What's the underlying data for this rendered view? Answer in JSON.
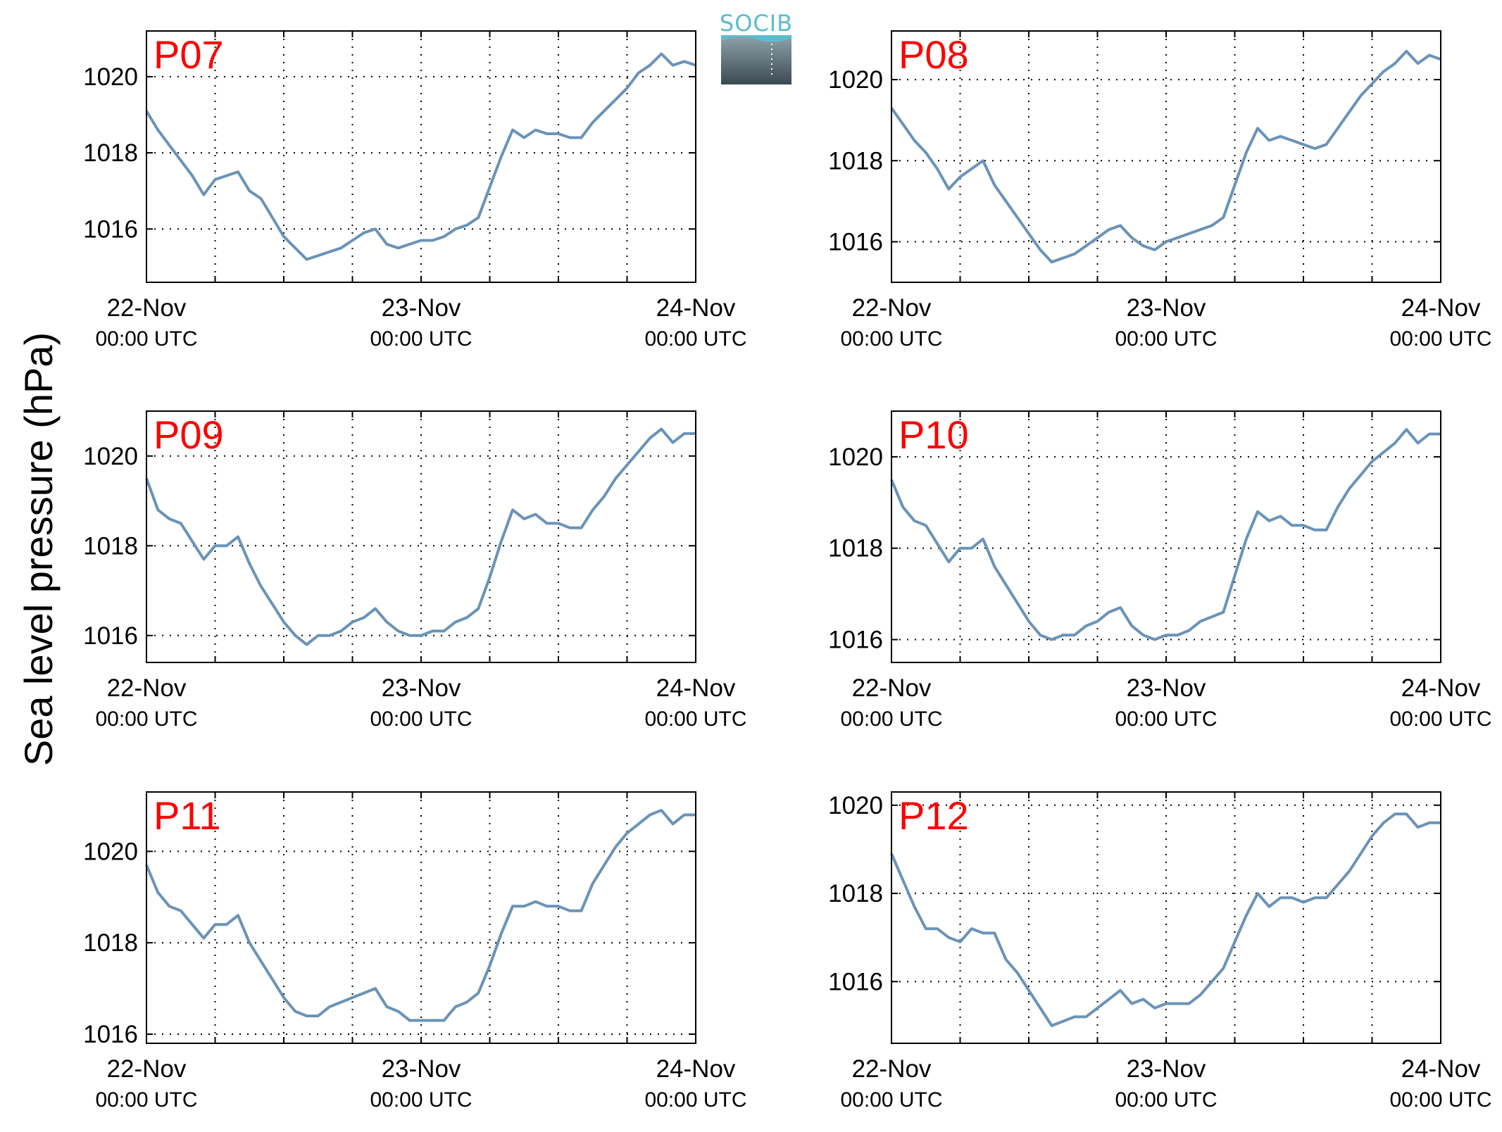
{
  "ylabel": "Sea level pressure (hPa)",
  "logo": {
    "text": "SOCIB",
    "text_color": "#5bbcd0",
    "top_color": "#8fa3ab",
    "bottom_color": "#3b4a52"
  },
  "line_color": "#6a93b7",
  "label_color": "#ff0000",
  "x_ticks": [
    {
      "main": "22-Nov",
      "sub": "00:00 UTC",
      "hours": 0
    },
    {
      "main": "23-Nov",
      "sub": "00:00 UTC",
      "hours": 24
    },
    {
      "main": "24-Nov",
      "sub": "00:00 UTC",
      "hours": 48
    }
  ],
  "chart_data": [
    {
      "type": "line",
      "label": "P07",
      "grid": true,
      "xlim_hours": [
        0,
        48
      ],
      "ylim": [
        1014.6,
        1021.2
      ],
      "yticks": [
        1016,
        1018,
        1020
      ],
      "x_hours": [
        0,
        1,
        2,
        3,
        4,
        5,
        6,
        7,
        8,
        9,
        10,
        11,
        12,
        13,
        14,
        15,
        16,
        17,
        18,
        19,
        20,
        21,
        22,
        23,
        24,
        25,
        26,
        27,
        28,
        29,
        30,
        31,
        32,
        33,
        34,
        35,
        36,
        37,
        38,
        39,
        40,
        41,
        42,
        43,
        44,
        45,
        46,
        47,
        48
      ],
      "y": [
        1019.1,
        1018.6,
        1018.2,
        1017.8,
        1017.4,
        1016.9,
        1017.3,
        1017.4,
        1017.5,
        1017.0,
        1016.8,
        1016.3,
        1015.8,
        1015.5,
        1015.2,
        1015.3,
        1015.4,
        1015.5,
        1015.7,
        1015.9,
        1016.0,
        1015.6,
        1015.5,
        1015.6,
        1015.7,
        1015.7,
        1015.8,
        1016.0,
        1016.1,
        1016.3,
        1017.1,
        1017.9,
        1018.6,
        1018.4,
        1018.6,
        1018.5,
        1018.5,
        1018.4,
        1018.4,
        1018.8,
        1019.1,
        1019.4,
        1019.7,
        1020.1,
        1020.3,
        1020.6,
        1020.3,
        1020.4,
        1020.3
      ]
    },
    {
      "type": "line",
      "label": "P08",
      "grid": true,
      "xlim_hours": [
        0,
        48
      ],
      "ylim": [
        1015.0,
        1021.2
      ],
      "yticks": [
        1016,
        1018,
        1020
      ],
      "x_hours": [
        0,
        1,
        2,
        3,
        4,
        5,
        6,
        7,
        8,
        9,
        10,
        11,
        12,
        13,
        14,
        15,
        16,
        17,
        18,
        19,
        20,
        21,
        22,
        23,
        24,
        25,
        26,
        27,
        28,
        29,
        30,
        31,
        32,
        33,
        34,
        35,
        36,
        37,
        38,
        39,
        40,
        41,
        42,
        43,
        44,
        45,
        46,
        47,
        48
      ],
      "y": [
        1019.3,
        1018.9,
        1018.5,
        1018.2,
        1017.8,
        1017.3,
        1017.6,
        1017.8,
        1018.0,
        1017.4,
        1017.0,
        1016.6,
        1016.2,
        1015.8,
        1015.5,
        1015.6,
        1015.7,
        1015.9,
        1016.1,
        1016.3,
        1016.4,
        1016.1,
        1015.9,
        1015.8,
        1016.0,
        1016.1,
        1016.2,
        1016.3,
        1016.4,
        1016.6,
        1017.4,
        1018.2,
        1018.8,
        1018.5,
        1018.6,
        1018.5,
        1018.4,
        1018.3,
        1018.4,
        1018.8,
        1019.2,
        1019.6,
        1019.9,
        1020.2,
        1020.4,
        1020.7,
        1020.4,
        1020.6,
        1020.5
      ]
    },
    {
      "type": "line",
      "label": "P09",
      "grid": true,
      "xlim_hours": [
        0,
        48
      ],
      "ylim": [
        1015.4,
        1021.0
      ],
      "yticks": [
        1016,
        1018,
        1020
      ],
      "x_hours": [
        0,
        1,
        2,
        3,
        4,
        5,
        6,
        7,
        8,
        9,
        10,
        11,
        12,
        13,
        14,
        15,
        16,
        17,
        18,
        19,
        20,
        21,
        22,
        23,
        24,
        25,
        26,
        27,
        28,
        29,
        30,
        31,
        32,
        33,
        34,
        35,
        36,
        37,
        38,
        39,
        40,
        41,
        42,
        43,
        44,
        45,
        46,
        47,
        48
      ],
      "y": [
        1019.5,
        1018.8,
        1018.6,
        1018.5,
        1018.1,
        1017.7,
        1018.0,
        1018.0,
        1018.2,
        1017.6,
        1017.1,
        1016.7,
        1016.3,
        1016.0,
        1015.8,
        1016.0,
        1016.0,
        1016.1,
        1016.3,
        1016.4,
        1016.6,
        1016.3,
        1016.1,
        1016.0,
        1016.0,
        1016.1,
        1016.1,
        1016.3,
        1016.4,
        1016.6,
        1017.3,
        1018.1,
        1018.8,
        1018.6,
        1018.7,
        1018.5,
        1018.5,
        1018.4,
        1018.4,
        1018.8,
        1019.1,
        1019.5,
        1019.8,
        1020.1,
        1020.4,
        1020.6,
        1020.3,
        1020.5,
        1020.5
      ]
    },
    {
      "type": "line",
      "label": "P10",
      "grid": true,
      "xlim_hours": [
        0,
        48
      ],
      "ylim": [
        1015.5,
        1021.0
      ],
      "yticks": [
        1016,
        1018,
        1020
      ],
      "x_hours": [
        0,
        1,
        2,
        3,
        4,
        5,
        6,
        7,
        8,
        9,
        10,
        11,
        12,
        13,
        14,
        15,
        16,
        17,
        18,
        19,
        20,
        21,
        22,
        23,
        24,
        25,
        26,
        27,
        28,
        29,
        30,
        31,
        32,
        33,
        34,
        35,
        36,
        37,
        38,
        39,
        40,
        41,
        42,
        43,
        44,
        45,
        46,
        47,
        48
      ],
      "y": [
        1019.5,
        1018.9,
        1018.6,
        1018.5,
        1018.1,
        1017.7,
        1018.0,
        1018.0,
        1018.2,
        1017.6,
        1017.2,
        1016.8,
        1016.4,
        1016.1,
        1016.0,
        1016.1,
        1016.1,
        1016.3,
        1016.4,
        1016.6,
        1016.7,
        1016.3,
        1016.1,
        1016.0,
        1016.1,
        1016.1,
        1016.2,
        1016.4,
        1016.5,
        1016.6,
        1017.4,
        1018.2,
        1018.8,
        1018.6,
        1018.7,
        1018.5,
        1018.5,
        1018.4,
        1018.4,
        1018.9,
        1019.3,
        1019.6,
        1019.9,
        1020.1,
        1020.3,
        1020.6,
        1020.3,
        1020.5,
        1020.5
      ]
    },
    {
      "type": "line",
      "label": "P11",
      "grid": true,
      "xlim_hours": [
        0,
        48
      ],
      "ylim": [
        1015.8,
        1021.3
      ],
      "yticks": [
        1016,
        1018,
        1020
      ],
      "x_hours": [
        0,
        1,
        2,
        3,
        4,
        5,
        6,
        7,
        8,
        9,
        10,
        11,
        12,
        13,
        14,
        15,
        16,
        17,
        18,
        19,
        20,
        21,
        22,
        23,
        24,
        25,
        26,
        27,
        28,
        29,
        30,
        31,
        32,
        33,
        34,
        35,
        36,
        37,
        38,
        39,
        40,
        41,
        42,
        43,
        44,
        45,
        46,
        47,
        48
      ],
      "y": [
        1019.7,
        1019.1,
        1018.8,
        1018.7,
        1018.4,
        1018.1,
        1018.4,
        1018.4,
        1018.6,
        1018.0,
        1017.6,
        1017.2,
        1016.8,
        1016.5,
        1016.4,
        1016.4,
        1016.6,
        1016.7,
        1016.8,
        1016.9,
        1017.0,
        1016.6,
        1016.5,
        1016.3,
        1016.3,
        1016.3,
        1016.3,
        1016.6,
        1016.7,
        1016.9,
        1017.5,
        1018.2,
        1018.8,
        1018.8,
        1018.9,
        1018.8,
        1018.8,
        1018.7,
        1018.7,
        1019.3,
        1019.7,
        1020.1,
        1020.4,
        1020.6,
        1020.8,
        1020.9,
        1020.6,
        1020.8,
        1020.8
      ]
    },
    {
      "type": "line",
      "label": "P12",
      "grid": true,
      "xlim_hours": [
        0,
        48
      ],
      "ylim": [
        1014.6,
        1020.3
      ],
      "yticks": [
        1016,
        1018,
        1020
      ],
      "x_hours": [
        0,
        1,
        2,
        3,
        4,
        5,
        6,
        7,
        8,
        9,
        10,
        11,
        12,
        13,
        14,
        15,
        16,
        17,
        18,
        19,
        20,
        21,
        22,
        23,
        24,
        25,
        26,
        27,
        28,
        29,
        30,
        31,
        32,
        33,
        34,
        35,
        36,
        37,
        38,
        39,
        40,
        41,
        42,
        43,
        44,
        45,
        46,
        47,
        48
      ],
      "y": [
        1018.9,
        1018.3,
        1017.7,
        1017.2,
        1017.2,
        1017.0,
        1016.9,
        1017.2,
        1017.1,
        1017.1,
        1016.5,
        1016.2,
        1015.8,
        1015.4,
        1015.0,
        1015.1,
        1015.2,
        1015.2,
        1015.4,
        1015.6,
        1015.8,
        1015.5,
        1015.6,
        1015.4,
        1015.5,
        1015.5,
        1015.5,
        1015.7,
        1016.0,
        1016.3,
        1016.9,
        1017.5,
        1018.0,
        1017.7,
        1017.9,
        1017.9,
        1017.8,
        1017.9,
        1017.9,
        1018.2,
        1018.5,
        1018.9,
        1019.3,
        1019.6,
        1019.8,
        1019.8,
        1019.5,
        1019.6,
        1019.6
      ]
    }
  ]
}
